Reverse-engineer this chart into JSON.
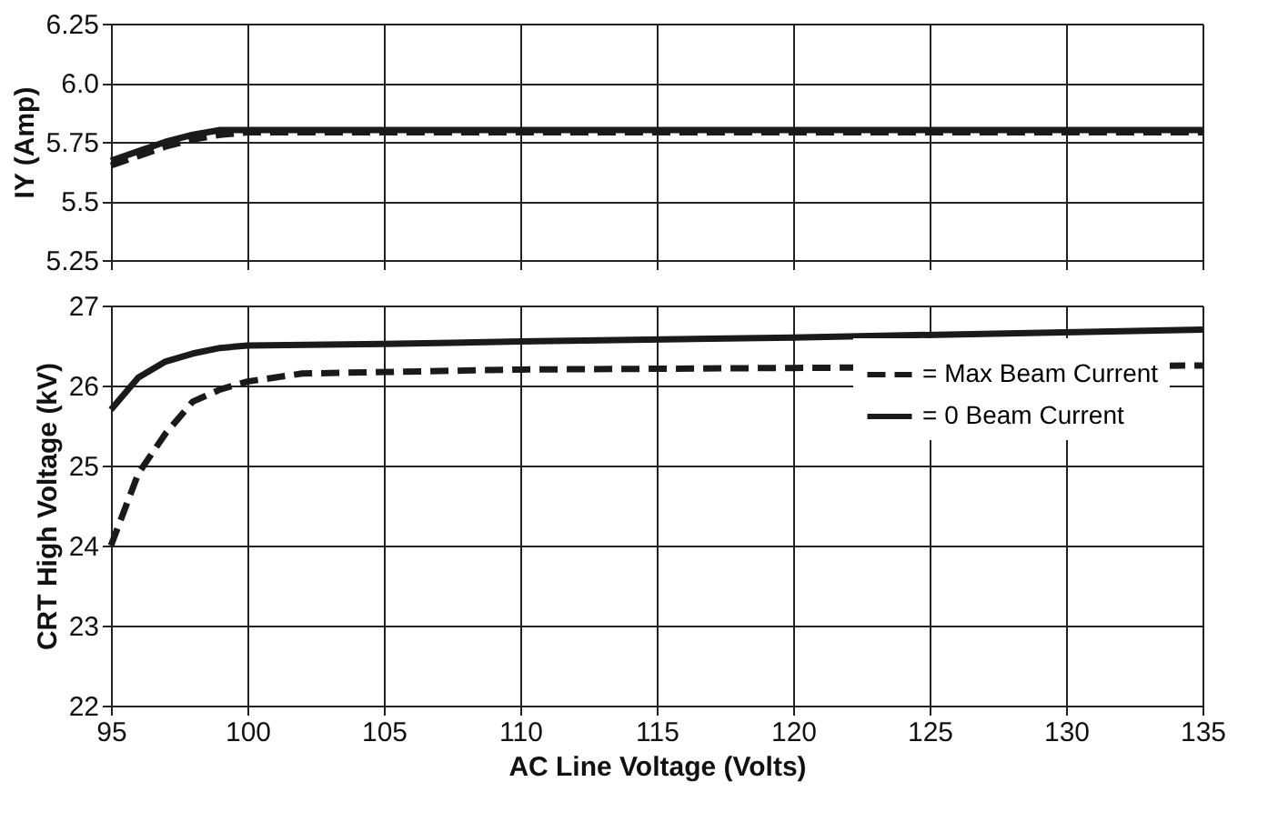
{
  "chart_data": [
    {
      "type": "line",
      "ylabel": "IY (Amp)",
      "xlim": [
        95,
        135
      ],
      "xticks": [
        95,
        100,
        105,
        110,
        115,
        120,
        125,
        130,
        135
      ],
      "ylim": [
        5.25,
        6.25
      ],
      "yticks": [
        {
          "value": 5.25,
          "label": "5.25"
        },
        {
          "value": 5.5,
          "label": "5.5"
        },
        {
          "value": 5.75,
          "label": "5.75"
        },
        {
          "value": 6.0,
          "label": "6.0"
        },
        {
          "value": 6.25,
          "label": "6.25"
        }
      ],
      "grid": true,
      "tick_labels": "y",
      "series": [
        {
          "color": "#1a1a1a",
          "line_style": "solid",
          "x": [
            95,
            96,
            97,
            98,
            99,
            100,
            105,
            115,
            125,
            135
          ],
          "values": [
            5.67,
            5.71,
            5.75,
            5.78,
            5.8,
            5.8,
            5.8,
            5.8,
            5.8,
            5.8
          ]
        },
        {
          "color": "#1a1a1a",
          "line_style": "dashed",
          "x": [
            95,
            96,
            97,
            98,
            99,
            100,
            105,
            115,
            125,
            135
          ],
          "values": [
            5.65,
            5.69,
            5.73,
            5.76,
            5.78,
            5.79,
            5.79,
            5.79,
            5.79,
            5.79
          ]
        }
      ]
    },
    {
      "type": "line",
      "xlabel": "AC Line Voltage (Volts)",
      "ylabel": "CRT High Voltage (kV)",
      "xlim": [
        95,
        135
      ],
      "xticks": [
        95,
        100,
        105,
        110,
        115,
        120,
        125,
        130,
        135
      ],
      "ylim": [
        22,
        27
      ],
      "yticks": [
        22,
        23,
        24,
        25,
        26,
        27
      ],
      "grid": true,
      "legend": "top right",
      "series": [
        {
          "name": "= Max Beam Current",
          "color": "#1a1a1a",
          "line_style": "dashed",
          "x": [
            95,
            96,
            97,
            98,
            99,
            100,
            102,
            110,
            120,
            135
          ],
          "values": [
            24.0,
            24.9,
            25.4,
            25.8,
            25.95,
            26.05,
            26.15,
            26.2,
            26.22,
            26.25
          ]
        },
        {
          "name": "= 0 Beam Current",
          "color": "#1a1a1a",
          "line_style": "solid",
          "x": [
            95,
            96,
            97,
            98,
            99,
            100,
            105,
            110,
            120,
            135
          ],
          "values": [
            25.7,
            26.1,
            26.3,
            26.4,
            26.47,
            26.5,
            26.52,
            26.55,
            26.6,
            26.7
          ]
        }
      ]
    }
  ]
}
